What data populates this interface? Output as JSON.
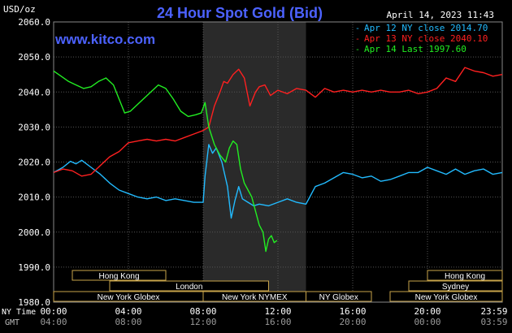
{
  "header": {
    "unit_label": "USD/oz",
    "title": "24 Hour Spot Gold (Bid)",
    "datetime": "April 14, 2023 11:43",
    "website": "www.kitco.com"
  },
  "legend": [
    {
      "text": "Apr 12 NY close 2014.70",
      "color": "#22bbff"
    },
    {
      "text": "Apr 13 NY close 2040.10",
      "color": "#ff2020"
    },
    {
      "text": "Apr 14 Last 1997.60",
      "color": "#22ee22"
    }
  ],
  "time_rows": {
    "ny_label": "NY Time",
    "gmt_label": "GMT",
    "ny_ticks": [
      "00:00",
      "04:00",
      "08:00",
      "12:00",
      "16:00",
      "20:00",
      "23:59"
    ],
    "gmt_ticks": [
      "04:00",
      "08:00",
      "12:00",
      "16:00",
      "20:00",
      "00:00",
      "03:59"
    ]
  },
  "sessions": [
    {
      "label": "Hong Kong",
      "row": 0,
      "start_h": 1.0,
      "end_h": 6.0
    },
    {
      "label": "London",
      "row": 1,
      "start_h": 3.0,
      "end_h": 11.5
    },
    {
      "label": "New York Globex",
      "row": 2,
      "start_h": 0.0,
      "end_h": 8.0
    },
    {
      "label": "New York NYMEX",
      "row": 2,
      "start_h": 8.0,
      "end_h": 13.5
    },
    {
      "label": "NY Globex",
      "row": 2,
      "start_h": 13.5,
      "end_h": 17.0
    },
    {
      "label": "Hong Kong",
      "row": 0,
      "start_h": 20.0,
      "end_h": 24.0
    },
    {
      "label": "Sydney",
      "row": 1,
      "start_h": 19.0,
      "end_h": 24.0
    },
    {
      "label": "New York Globex",
      "row": 2,
      "start_h": 18.0,
      "end_h": 24.0
    }
  ],
  "chart_data": {
    "type": "line",
    "xlabel": "",
    "ylabel": "",
    "x_unit": "hours (NY time)",
    "xlim": [
      0,
      24
    ],
    "ylim": [
      1980,
      2060
    ],
    "yticks": [
      "2060.0",
      "2050.0",
      "2040.0",
      "2030.0",
      "2020.0",
      "2010.0",
      "2000.0",
      "1990.0",
      "1980.0"
    ],
    "grid": true,
    "highlight_hours": [
      8.0,
      13.5
    ],
    "series": [
      {
        "name": "Apr 12 NY close 2014.70",
        "color": "#22bbff",
        "x": [
          0,
          0.5,
          0.9,
          1.2,
          1.5,
          2.0,
          2.5,
          3.0,
          3.5,
          4.0,
          4.5,
          5.0,
          5.5,
          6.0,
          6.5,
          7.0,
          7.5,
          8.0,
          8.1,
          8.3,
          8.5,
          8.7,
          9.0,
          9.3,
          9.5,
          9.7,
          9.9,
          10.1,
          10.4,
          10.7,
          11.0,
          11.5,
          12.0,
          12.5,
          13.0,
          13.5,
          14.0,
          14.5,
          15.0,
          15.5,
          16.0,
          16.5,
          17.0,
          17.5,
          18.0,
          18.5,
          19.0,
          19.5,
          20.0,
          20.5,
          21.0,
          21.5,
          22.0,
          22.5,
          23.0,
          23.5,
          24.0
        ],
        "y": [
          2017.0,
          2018.5,
          2020.2,
          2019.5,
          2020.5,
          2018.5,
          2016.5,
          2014.0,
          2012.0,
          2011.0,
          2010.0,
          2009.5,
          2010.0,
          2009.0,
          2009.5,
          2009.0,
          2008.5,
          2008.5,
          2016.0,
          2025.0,
          2022.5,
          2024.0,
          2020.0,
          2013.0,
          2004.0,
          2009.0,
          2013.0,
          2009.5,
          2008.5,
          2007.5,
          2008.0,
          2007.5,
          2008.5,
          2009.5,
          2008.5,
          2008.0,
          2013.0,
          2014.0,
          2015.5,
          2017.0,
          2016.5,
          2015.5,
          2016.0,
          2014.5,
          2015.0,
          2016.0,
          2017.0,
          2017.0,
          2018.5,
          2017.5,
          2016.5,
          2018.0,
          2016.5,
          2017.5,
          2018.0,
          2016.5,
          2017.0
        ]
      },
      {
        "name": "Apr 13 NY close 2040.10",
        "color": "#ff2020",
        "x": [
          0,
          0.5,
          1.0,
          1.5,
          2.0,
          2.5,
          3.0,
          3.5,
          4.0,
          4.5,
          5.0,
          5.5,
          6.0,
          6.5,
          7.0,
          7.5,
          8.0,
          8.3,
          8.6,
          8.9,
          9.1,
          9.3,
          9.6,
          9.9,
          10.2,
          10.5,
          10.8,
          11.0,
          11.3,
          11.6,
          12.0,
          12.5,
          13.0,
          13.5,
          14.0,
          14.5,
          15.0,
          15.5,
          16.0,
          16.5,
          17.0,
          17.5,
          18.0,
          18.5,
          19.0,
          19.5,
          20.0,
          20.5,
          21.0,
          21.5,
          22.0,
          22.5,
          23.0,
          23.5,
          24.0
        ],
        "y": [
          2017.0,
          2018.0,
          2017.5,
          2016.0,
          2016.5,
          2019.0,
          2021.5,
          2023.0,
          2025.5,
          2026.0,
          2026.5,
          2026.0,
          2026.5,
          2026.0,
          2027.0,
          2028.0,
          2029.0,
          2030.0,
          2036.0,
          2040.0,
          2043.0,
          2042.5,
          2045.0,
          2046.5,
          2044.0,
          2036.0,
          2040.0,
          2041.5,
          2042.0,
          2039.0,
          2040.5,
          2039.5,
          2041.0,
          2040.5,
          2038.5,
          2041.0,
          2040.0,
          2040.5,
          2040.0,
          2040.5,
          2040.0,
          2040.5,
          2040.0,
          2040.0,
          2040.5,
          2039.5,
          2040.0,
          2041.0,
          2044.0,
          2043.0,
          2047.0,
          2046.0,
          2045.5,
          2044.5,
          2045.0
        ]
      },
      {
        "name": "Apr 14 Last 1997.60",
        "color": "#22ee22",
        "x": [
          0,
          0.4,
          0.8,
          1.2,
          1.6,
          2.0,
          2.4,
          2.8,
          3.2,
          3.5,
          3.8,
          4.1,
          4.4,
          4.8,
          5.2,
          5.6,
          6.0,
          6.4,
          6.8,
          7.2,
          7.6,
          7.9,
          8.1,
          8.3,
          8.6,
          8.9,
          9.2,
          9.4,
          9.6,
          9.8,
          10.0,
          10.2,
          10.4,
          10.6,
          10.8,
          11.0,
          11.2,
          11.35,
          11.5,
          11.65,
          11.8,
          11.95
        ],
        "y": [
          2046.0,
          2044.5,
          2043.0,
          2042.0,
          2041.0,
          2041.5,
          2043.0,
          2044.0,
          2042.0,
          2038.0,
          2034.0,
          2034.5,
          2036.0,
          2038.0,
          2040.0,
          2042.0,
          2041.0,
          2038.0,
          2034.5,
          2033.0,
          2033.5,
          2034.0,
          2037.0,
          2030.0,
          2025.0,
          2022.0,
          2020.0,
          2024.0,
          2026.0,
          2025.0,
          2018.0,
          2014.0,
          2012.0,
          2010.0,
          2006.0,
          2002.0,
          2000.0,
          1994.5,
          1998.0,
          1999.0,
          1997.0,
          1997.6
        ]
      }
    ]
  }
}
